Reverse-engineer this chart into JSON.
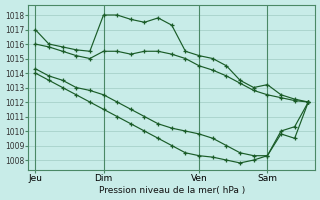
{
  "background_color": "#c8ece8",
  "grid_color": "#a0ccc4",
  "line_color": "#1a5c28",
  "xlabel": "Pression niveau de la mer( hPa )",
  "ylim": [
    1007.3,
    1018.7
  ],
  "yticks": [
    1008,
    1009,
    1010,
    1011,
    1012,
    1013,
    1014,
    1015,
    1016,
    1017,
    1018
  ],
  "xtick_labels": [
    "Jeu",
    "Dim",
    "Ven",
    "Sam"
  ],
  "xtick_positions": [
    0,
    5,
    12,
    17
  ],
  "n_points": 21,
  "vline_positions": [
    0,
    5,
    12,
    17
  ],
  "s1": [
    1017.0,
    1016.0,
    1015.8,
    1015.6,
    1015.5,
    1018.0,
    1018.0,
    1017.7,
    1017.5,
    1017.8,
    1017.3,
    1015.5,
    1015.2,
    1015.0,
    1014.5,
    1013.5,
    1013.0,
    1013.2,
    1012.5,
    1012.2,
    1012.0
  ],
  "s2": [
    1016.0,
    1015.8,
    1015.5,
    1015.2,
    1015.0,
    1015.5,
    1015.5,
    1015.3,
    1015.5,
    1015.5,
    1015.3,
    1015.0,
    1014.5,
    1014.2,
    1013.8,
    1013.3,
    1012.8,
    1012.5,
    1012.3,
    1012.1,
    1012.0
  ],
  "s3": [
    1014.3,
    1013.8,
    1013.5,
    1013.0,
    1012.8,
    1012.5,
    1012.0,
    1011.5,
    1011.0,
    1010.5,
    1010.2,
    1010.0,
    1009.8,
    1009.5,
    1009.0,
    1008.5,
    1008.3,
    1008.3,
    1010.0,
    1010.3,
    1012.0
  ],
  "s4": [
    1014.0,
    1013.5,
    1013.0,
    1012.5,
    1012.0,
    1011.5,
    1011.0,
    1010.5,
    1010.0,
    1009.5,
    1009.0,
    1008.5,
    1008.3,
    1008.2,
    1008.0,
    1007.8,
    1008.0,
    1008.3,
    1009.8,
    1009.5,
    1012.0
  ]
}
